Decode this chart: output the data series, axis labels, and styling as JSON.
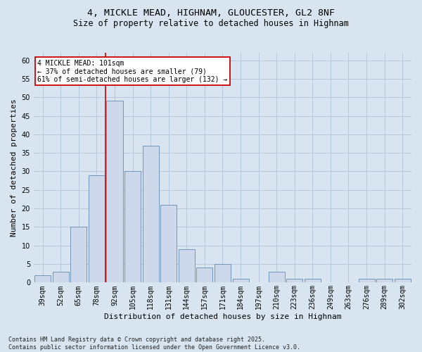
{
  "title_line1": "4, MICKLE MEAD, HIGHNAM, GLOUCESTER, GL2 8NF",
  "title_line2": "Size of property relative to detached houses in Highnam",
  "xlabel": "Distribution of detached houses by size in Highnam",
  "ylabel": "Number of detached properties",
  "footer": "Contains HM Land Registry data © Crown copyright and database right 2025.\nContains public sector information licensed under the Open Government Licence v3.0.",
  "categories": [
    "39sqm",
    "52sqm",
    "65sqm",
    "78sqm",
    "92sqm",
    "105sqm",
    "118sqm",
    "131sqm",
    "144sqm",
    "157sqm",
    "171sqm",
    "184sqm",
    "197sqm",
    "210sqm",
    "223sqm",
    "236sqm",
    "249sqm",
    "263sqm",
    "276sqm",
    "289sqm",
    "302sqm"
  ],
  "values": [
    2,
    3,
    15,
    29,
    49,
    30,
    37,
    21,
    9,
    4,
    5,
    1,
    0,
    3,
    1,
    1,
    0,
    0,
    1,
    1,
    1
  ],
  "bar_color": "#cdd9ea",
  "bar_edge_color": "#7096b8",
  "vline_index": 4,
  "annotation_text": "4 MICKLE MEAD: 101sqm\n← 37% of detached houses are smaller (79)\n61% of semi-detached houses are larger (132) →",
  "annotation_box_color": "#ffffff",
  "annotation_box_edge": "#cc0000",
  "vline_color": "#cc0000",
  "ylim": [
    0,
    62
  ],
  "yticks": [
    0,
    5,
    10,
    15,
    20,
    25,
    30,
    35,
    40,
    45,
    50,
    55,
    60
  ],
  "grid_color": "#b8c8dc",
  "background_color": "#d8e4f0",
  "title_fontsize": 9.5,
  "subtitle_fontsize": 8.5,
  "ylabel_fontsize": 8,
  "xlabel_fontsize": 8,
  "tick_fontsize": 7,
  "annotation_fontsize": 7,
  "footer_fontsize": 6
}
